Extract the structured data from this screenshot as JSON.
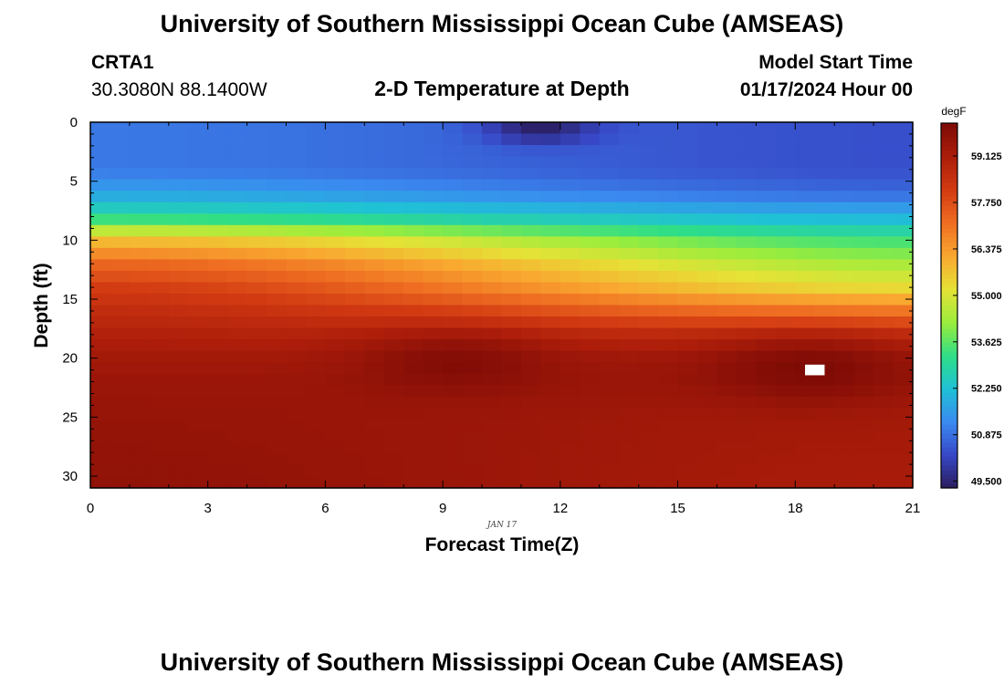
{
  "header": {
    "title": "University of Southern Mississippi Ocean Cube (AMSEAS)",
    "station": "CRTA1",
    "coords": "30.3080N  88.1400W",
    "subtitle": "2-D Temperature at Depth",
    "model_start_label": "Model Start Time",
    "model_start_value": "01/17/2024 Hour 00"
  },
  "footer": {
    "title": "University of Southern Mississippi Ocean Cube (AMSEAS)"
  },
  "chart_data": {
    "type": "heatmap",
    "title": "2-D Temperature at Depth",
    "xlabel": "Forecast Time(Z)",
    "ylabel": "Depth (ft)",
    "x_date_label": "JAN 17",
    "xlim": [
      0,
      21
    ],
    "ylim": [
      0,
      31
    ],
    "y_inverted": true,
    "x_ticks": [
      0,
      3,
      6,
      9,
      12,
      15,
      18,
      21
    ],
    "x_tick_labels": [
      "0",
      "3",
      "6",
      "9",
      "12",
      "15",
      "18",
      "21"
    ],
    "y_ticks": [
      0,
      5,
      10,
      15,
      20,
      25,
      30
    ],
    "y_tick_labels": [
      "0",
      "5",
      "10",
      "15",
      "20",
      "25",
      "30"
    ],
    "colorbar": {
      "unit": "degF",
      "range": [
        49.3,
        60.1
      ],
      "ticks": [
        59.125,
        57.75,
        56.375,
        55.0,
        53.625,
        52.25,
        50.875,
        49.5
      ],
      "tick_labels": [
        "59.125",
        "57.750",
        "56.375",
        "55.000",
        "53.625",
        "52.250",
        "50.875",
        "49.500"
      ],
      "colors": [
        "#2a1c5c",
        "#3747c6",
        "#3a8af0",
        "#1fc1d6",
        "#2fde86",
        "#9bed3c",
        "#e6e236",
        "#f9a830",
        "#ef6e22",
        "#d23a12",
        "#ac1d0a",
        "#7e0b06"
      ]
    },
    "grid_nx": 42,
    "grid_ny": 32,
    "temperature_profile": {
      "depth_ft": [
        0,
        4,
        6,
        8,
        10,
        12,
        14,
        16,
        18,
        20,
        22,
        25,
        31
      ],
      "early_degF": [
        51.0,
        51.0,
        51.7,
        53.0,
        55.8,
        57.3,
        58.1,
        58.6,
        59.0,
        59.3,
        59.5,
        59.6,
        59.7
      ],
      "late_degF": [
        50.4,
        50.4,
        50.8,
        52.0,
        53.4,
        54.4,
        55.3,
        57.0,
        58.6,
        59.4,
        59.5,
        59.3,
        59.2
      ]
    },
    "anomalies": [
      {
        "feature": "cold near-surface minimum",
        "time_h": 11.5,
        "depth_ft": 0.5,
        "degF": 49.4
      },
      {
        "feature": "warm core",
        "time_h": 9.3,
        "depth_ft": 20.5,
        "degF": 60.0
      },
      {
        "feature": "warm core",
        "time_h": 18.3,
        "depth_ft": 21.0,
        "degF": 60.1
      }
    ],
    "missing_cells": [
      {
        "time_h": 18.5,
        "depth_ft": 21
      }
    ]
  }
}
